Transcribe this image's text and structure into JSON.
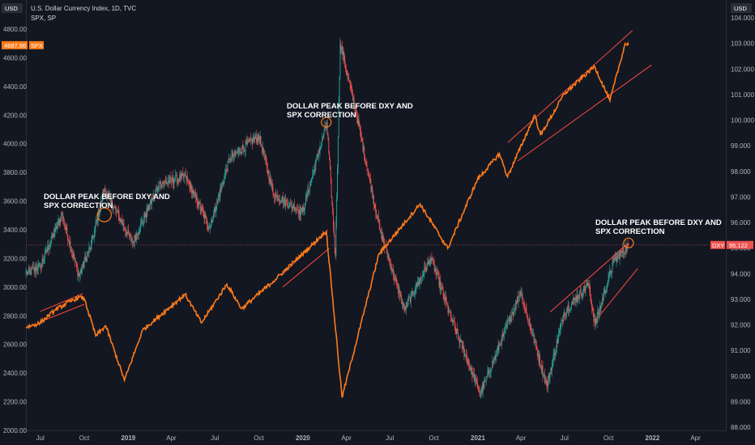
{
  "header": {
    "title": "U.S. Dollar Currency Index, 1D, TVC",
    "subtitle": "SPX, SP",
    "left_currency": "USD",
    "right_currency": "USD"
  },
  "colors": {
    "background": "#131722",
    "spx": "#ff7b1a",
    "dxy_up": "#26a69a",
    "dxy_down": "#ef5350",
    "channel": "#ff4a3d",
    "text": "#b2b5be",
    "annotation": "#ffffff"
  },
  "tags": {
    "spx_value": "4687.86",
    "spx_label": "SPX",
    "dxy_label": "DXY",
    "dxy_value": "95.122"
  },
  "annotations": [
    {
      "line1": "DOLLAR PEAK BEFORE DXY AND",
      "line2": "SPX CORRECTION"
    },
    {
      "line1": "DOLLAR PEAK BEFORE DXY AND",
      "line2": "SPX CORRECTION"
    },
    {
      "line1": "DOLLAR PEAK BEFORE DXY AND",
      "line2": "SPX CORRECTION"
    }
  ],
  "chart_data": {
    "type": "line",
    "x_ticks": [
      "Jul",
      "Oct",
      "2019",
      "Apr",
      "Jul",
      "Oct",
      "2020",
      "Apr",
      "Jul",
      "Oct",
      "2021",
      "Apr",
      "Jul",
      "Oct",
      "2022",
      "Apr"
    ],
    "x_tick_dates": [
      "2018-07",
      "2018-10",
      "2019-01",
      "2019-04",
      "2019-07",
      "2019-10",
      "2020-01",
      "2020-04",
      "2020-07",
      "2020-10",
      "2021-01",
      "2021-04",
      "2021-07",
      "2021-10",
      "2022-01",
      "2022-04"
    ],
    "left_axis": {
      "ticks": [
        "4800.00",
        "4600.00",
        "4400.00",
        "4200.00",
        "4000.00",
        "3800.00",
        "3600.00",
        "3400.00",
        "3200.00",
        "3000.00",
        "2800.00",
        "2600.00",
        "2400.00",
        "2200.00",
        "2000.00"
      ],
      "ylim": [
        2000,
        4800
      ]
    },
    "right_axis": {
      "ticks": [
        "104.000",
        "103.000",
        "102.000",
        "101.000",
        "100.000",
        "99.000",
        "98.000",
        "97.000",
        "96.000",
        "95.000",
        "94.000",
        "93.000",
        "92.000",
        "91.000",
        "90.000",
        "89.000",
        "88.000"
      ],
      "ylim": [
        88,
        104
      ]
    },
    "series": [
      {
        "name": "SPX",
        "axis": "left",
        "style": "line",
        "points": [
          [
            "2018-06-01",
            2720
          ],
          [
            "2018-07-01",
            2750
          ],
          [
            "2018-08-01",
            2840
          ],
          [
            "2018-09-01",
            2900
          ],
          [
            "2018-09-20",
            2930
          ],
          [
            "2018-10-01",
            2920
          ],
          [
            "2018-10-25",
            2660
          ],
          [
            "2018-11-15",
            2730
          ],
          [
            "2018-12-24",
            2350
          ],
          [
            "2019-01-31",
            2700
          ],
          [
            "2019-04-30",
            2950
          ],
          [
            "2019-06-03",
            2750
          ],
          [
            "2019-07-26",
            3020
          ],
          [
            "2019-08-26",
            2850
          ],
          [
            "2019-10-31",
            3040
          ],
          [
            "2019-12-31",
            3230
          ],
          [
            "2020-02-19",
            3390
          ],
          [
            "2020-03-23",
            2230
          ],
          [
            "2020-06-08",
            3230
          ],
          [
            "2020-09-02",
            3580
          ],
          [
            "2020-10-30",
            3270
          ],
          [
            "2020-12-31",
            3750
          ],
          [
            "2021-02-15",
            3930
          ],
          [
            "2021-03-04",
            3770
          ],
          [
            "2021-04-30",
            4200
          ],
          [
            "2021-05-12",
            4060
          ],
          [
            "2021-07-01",
            4350
          ],
          [
            "2021-09-02",
            4540
          ],
          [
            "2021-10-04",
            4300
          ],
          [
            "2021-11-05",
            4700
          ],
          [
            "2021-11-12",
            4690
          ]
        ]
      },
      {
        "name": "DXY",
        "axis": "right",
        "style": "candles",
        "points": [
          [
            "2018-06-01",
            94.0
          ],
          [
            "2018-07-01",
            94.3
          ],
          [
            "2018-08-15",
            96.3
          ],
          [
            "2018-09-20",
            93.9
          ],
          [
            "2018-10-15",
            95.1
          ],
          [
            "2018-11-12",
            97.3
          ],
          [
            "2019-01-10",
            95.2
          ],
          [
            "2019-03-07",
            97.5
          ],
          [
            "2019-05-01",
            97.8
          ],
          [
            "2019-06-20",
            95.8
          ],
          [
            "2019-08-01",
            98.5
          ],
          [
            "2019-10-01",
            99.4
          ],
          [
            "2019-11-01",
            97.1
          ],
          [
            "2019-12-31",
            96.4
          ],
          [
            "2020-02-20",
            99.9
          ],
          [
            "2020-03-09",
            94.7
          ],
          [
            "2020-03-19",
            103.0
          ],
          [
            "2020-04-20",
            100.4
          ],
          [
            "2020-06-10",
            95.7
          ],
          [
            "2020-07-31",
            92.6
          ],
          [
            "2020-09-25",
            94.6
          ],
          [
            "2020-11-05",
            92.3
          ],
          [
            "2021-01-06",
            89.3
          ],
          [
            "2021-03-31",
            93.3
          ],
          [
            "2021-05-25",
            89.6
          ],
          [
            "2021-06-30",
            92.5
          ],
          [
            "2021-08-20",
            93.6
          ],
          [
            "2021-09-03",
            92.0
          ],
          [
            "2021-10-12",
            94.5
          ],
          [
            "2021-11-12",
            95.122
          ]
        ]
      }
    ],
    "last_values": {
      "SPX": 4687.86,
      "DXY": 95.122
    },
    "grid": false,
    "legend": "top-left"
  }
}
